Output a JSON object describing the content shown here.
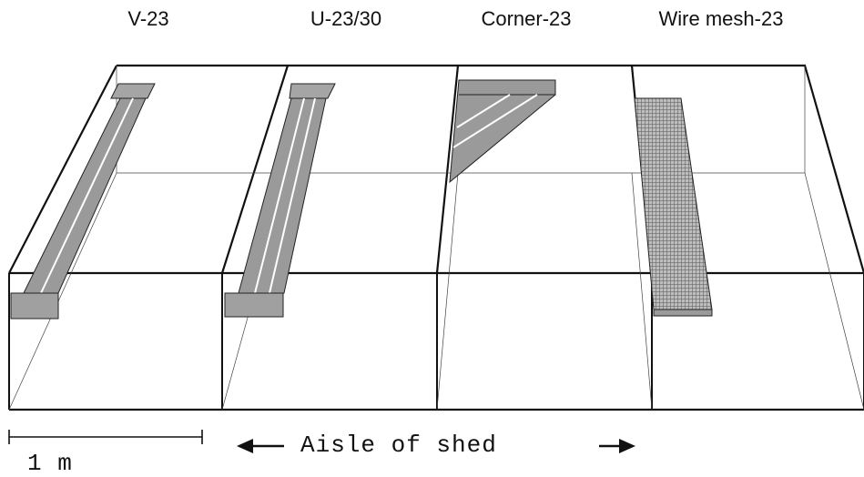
{
  "pens": [
    {
      "label": "V-23",
      "floor_type": "V-shaped slatted floor"
    },
    {
      "label": "U-23/30",
      "floor_type": "U-shaped slatted floor"
    },
    {
      "label": "Corner-23",
      "floor_type": "corner slatted floor"
    },
    {
      "label": "Wire mesh-23",
      "floor_type": "wire mesh floor"
    }
  ],
  "scale_bar": {
    "label": "1 m"
  },
  "aisle": {
    "label": "Aisle of shed"
  },
  "colors": {
    "line": "#111111",
    "fill": "#9a9a9a",
    "mesh": "#7a7a7a"
  }
}
